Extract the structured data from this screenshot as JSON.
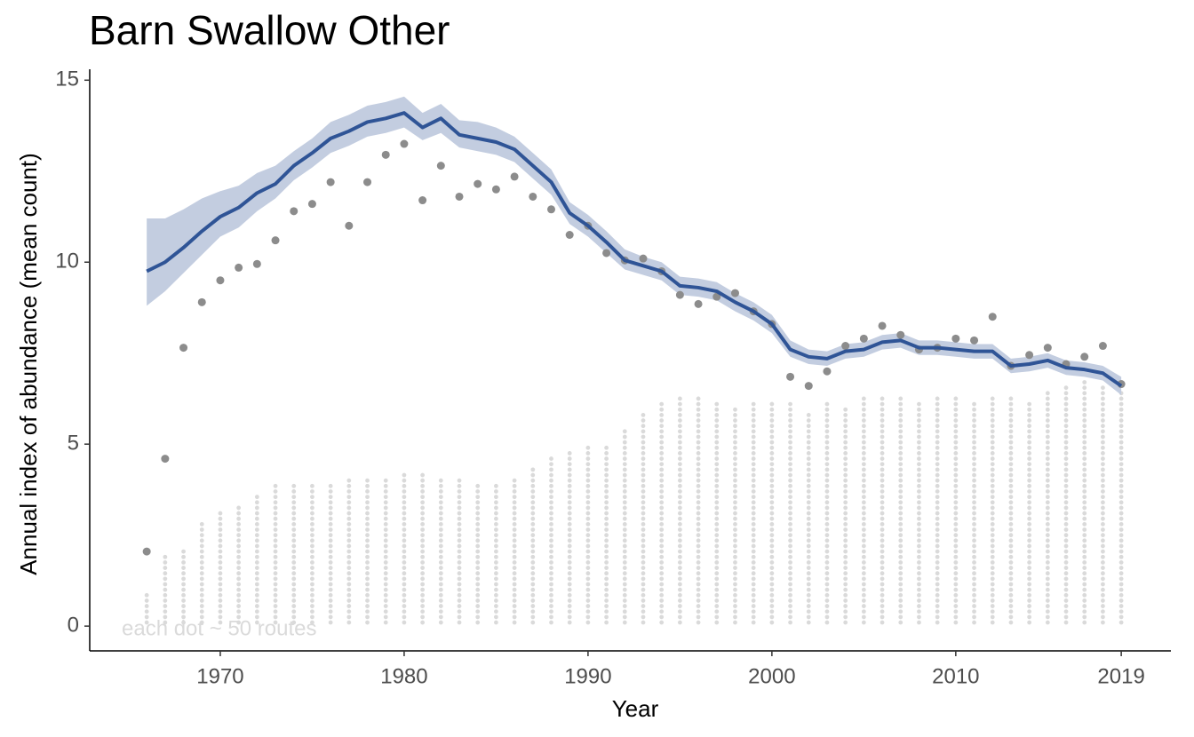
{
  "chart_data": {
    "type": "line",
    "title": "Barn Swallow Other",
    "xlabel": "Year",
    "ylabel": "Annual index of abundance (mean count)",
    "annotation": "each dot ~ 50 routes",
    "x": [
      1966,
      1967,
      1968,
      1969,
      1970,
      1971,
      1972,
      1973,
      1974,
      1975,
      1976,
      1977,
      1978,
      1979,
      1980,
      1981,
      1982,
      1983,
      1984,
      1985,
      1986,
      1987,
      1988,
      1989,
      1990,
      1991,
      1992,
      1993,
      1994,
      1995,
      1996,
      1997,
      1998,
      1999,
      2000,
      2001,
      2002,
      2003,
      2004,
      2005,
      2006,
      2007,
      2008,
      2009,
      2010,
      2011,
      2012,
      2013,
      2014,
      2015,
      2016,
      2017,
      2018,
      2019
    ],
    "index": [
      9.75,
      10.0,
      10.4,
      10.85,
      11.25,
      11.5,
      11.9,
      12.15,
      12.65,
      13.0,
      13.4,
      13.6,
      13.85,
      13.95,
      14.1,
      13.7,
      13.95,
      13.5,
      13.4,
      13.3,
      13.1,
      12.65,
      12.2,
      11.35,
      11.0,
      10.55,
      10.05,
      9.9,
      9.75,
      9.35,
      9.3,
      9.2,
      8.9,
      8.65,
      8.3,
      7.6,
      7.4,
      7.35,
      7.55,
      7.6,
      7.8,
      7.85,
      7.65,
      7.65,
      7.6,
      7.55,
      7.55,
      7.15,
      7.2,
      7.3,
      7.1,
      7.05,
      6.95,
      6.6
    ],
    "lower": [
      8.8,
      9.2,
      9.7,
      10.2,
      10.7,
      10.95,
      11.4,
      11.75,
      12.25,
      12.6,
      13.0,
      13.2,
      13.45,
      13.55,
      13.7,
      13.35,
      13.55,
      13.15,
      13.05,
      12.95,
      12.75,
      12.3,
      11.85,
      11.05,
      10.7,
      10.25,
      9.8,
      9.65,
      9.5,
      9.1,
      9.05,
      8.95,
      8.65,
      8.4,
      8.05,
      7.4,
      7.2,
      7.15,
      7.35,
      7.4,
      7.6,
      7.65,
      7.45,
      7.45,
      7.4,
      7.35,
      7.35,
      6.95,
      7.0,
      7.1,
      6.9,
      6.85,
      6.75,
      6.35
    ],
    "upper": [
      11.2,
      11.2,
      11.45,
      11.75,
      11.95,
      12.1,
      12.45,
      12.65,
      13.05,
      13.4,
      13.85,
      14.05,
      14.3,
      14.4,
      14.55,
      14.1,
      14.35,
      13.9,
      13.85,
      13.7,
      13.45,
      13.0,
      12.55,
      11.65,
      11.3,
      10.85,
      10.35,
      10.15,
      10.0,
      9.6,
      9.55,
      9.45,
      9.15,
      8.9,
      8.55,
      7.85,
      7.6,
      7.55,
      7.75,
      7.8,
      8.0,
      8.05,
      7.85,
      7.85,
      7.8,
      7.75,
      7.75,
      7.35,
      7.4,
      7.5,
      7.3,
      7.25,
      7.15,
      6.85
    ],
    "observed": [
      2.05,
      4.6,
      7.65,
      8.9,
      9.5,
      9.85,
      9.95,
      10.6,
      11.4,
      11.6,
      12.2,
      11.0,
      12.2,
      12.95,
      13.25,
      11.7,
      12.65,
      11.8,
      12.15,
      12.0,
      12.35,
      11.8,
      11.45,
      10.75,
      11.0,
      10.25,
      10.05,
      10.1,
      9.75,
      9.1,
      8.85,
      9.05,
      9.15,
      8.65,
      8.3,
      6.85,
      6.6,
      7.0,
      7.7,
      7.9,
      8.25,
      8.0,
      7.6,
      7.65,
      7.9,
      7.85,
      8.5,
      7.15,
      7.45,
      7.65,
      7.2,
      7.4,
      7.7,
      6.65
    ],
    "route_dots": [
      0.85,
      1.9,
      2.05,
      2.85,
      3.15,
      3.3,
      3.6,
      3.9,
      3.9,
      3.9,
      3.9,
      4.05,
      4.05,
      4.05,
      4.2,
      4.2,
      4.05,
      4.05,
      3.9,
      3.9,
      4.05,
      4.35,
      4.65,
      4.8,
      4.95,
      4.95,
      5.4,
      5.85,
      6.15,
      6.3,
      6.3,
      6.15,
      6.0,
      6.15,
      6.15,
      6.15,
      5.85,
      6.15,
      6.0,
      6.3,
      6.3,
      6.3,
      6.15,
      6.3,
      6.3,
      6.15,
      6.3,
      6.3,
      6.15,
      6.45,
      6.6,
      6.75,
      6.6,
      6.45
    ],
    "line_color": "#2f5496",
    "ribbon_color": "#c3cde0",
    "point_color": "#8c8c8c",
    "route_color": "#dadada",
    "xlim": [
      1962.9,
      2021.7
    ],
    "ylim": [
      -0.68,
      15.3
    ],
    "xticks": [
      1970,
      1980,
      1990,
      2000,
      2010,
      2019
    ],
    "yticks": [
      0,
      5,
      10,
      15
    ]
  }
}
